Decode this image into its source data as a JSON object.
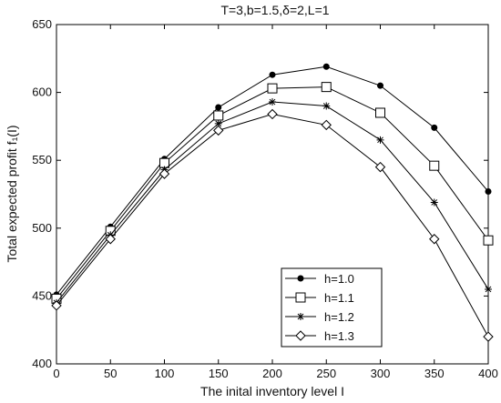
{
  "chart_data": {
    "type": "line",
    "title": "T=3,b=1.5,δ=2,L=1",
    "xlabel": "The inital inventory level I",
    "ylabel": "Total expected profit f₁(I)",
    "x": [
      0,
      50,
      100,
      150,
      200,
      250,
      300,
      350,
      400
    ],
    "xlim": [
      0,
      400
    ],
    "ylim": [
      400,
      650
    ],
    "xticks": [
      0,
      50,
      100,
      150,
      200,
      250,
      300,
      350,
      400
    ],
    "yticks": [
      400,
      450,
      500,
      550,
      600,
      650
    ],
    "grid": false,
    "legend_position": "lower-center-right",
    "series": [
      {
        "name": "h=1.0",
        "marker": "filled-circle",
        "values": [
          451,
          501,
          551,
          589,
          613,
          619,
          605,
          574,
          527
        ]
      },
      {
        "name": "h=1.1",
        "marker": "square",
        "values": [
          448,
          498,
          548,
          583,
          603,
          604,
          585,
          546,
          491
        ]
      },
      {
        "name": "h=1.2",
        "marker": "asterisk",
        "values": [
          445,
          495,
          543,
          577,
          593,
          590,
          565,
          519,
          455
        ]
      },
      {
        "name": "h=1.3",
        "marker": "diamond",
        "values": [
          443,
          492,
          540,
          572,
          584,
          576,
          545,
          492,
          420
        ]
      }
    ]
  }
}
